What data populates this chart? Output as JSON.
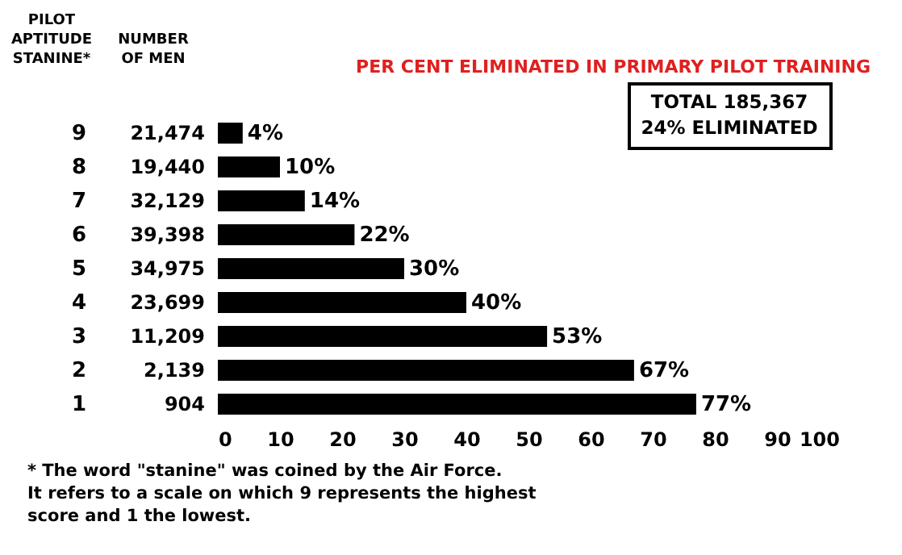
{
  "chart_data": {
    "type": "bar",
    "orientation": "horizontal",
    "title": "PER CENT ELIMINATED IN PRIMARY PILOT TRAINING",
    "ylabel": "PILOT\nAPTITUDE\nSTANINE*",
    "categories": [
      "9",
      "8",
      "7",
      "6",
      "5",
      "4",
      "3",
      "2",
      "1"
    ],
    "values": [
      4,
      10,
      14,
      22,
      30,
      40,
      53,
      67,
      77
    ],
    "value_labels": [
      "4%",
      "10%",
      "14%",
      "22%",
      "30%",
      "40%",
      "53%",
      "67%",
      "77%"
    ],
    "color": "#000000",
    "xlim": [
      0,
      100
    ],
    "xticks": [
      0,
      10,
      20,
      30,
      40,
      50,
      60,
      70,
      80,
      90,
      100
    ],
    "grid": false,
    "annotations": [
      "NUMBER\nOF  MEN",
      "TOTAL 185,367\n24% ELIMINATED",
      "* The word \"stanine\" was coined by the Air Force.\nIt refers to a scale on which 9 represents the highest\nscore and 1 the lowest.",
      "21,474",
      "19,440",
      "32,129",
      "39,398",
      "34,975",
      "23,699",
      "11,209",
      "2,139",
      "904"
    ]
  }
}
